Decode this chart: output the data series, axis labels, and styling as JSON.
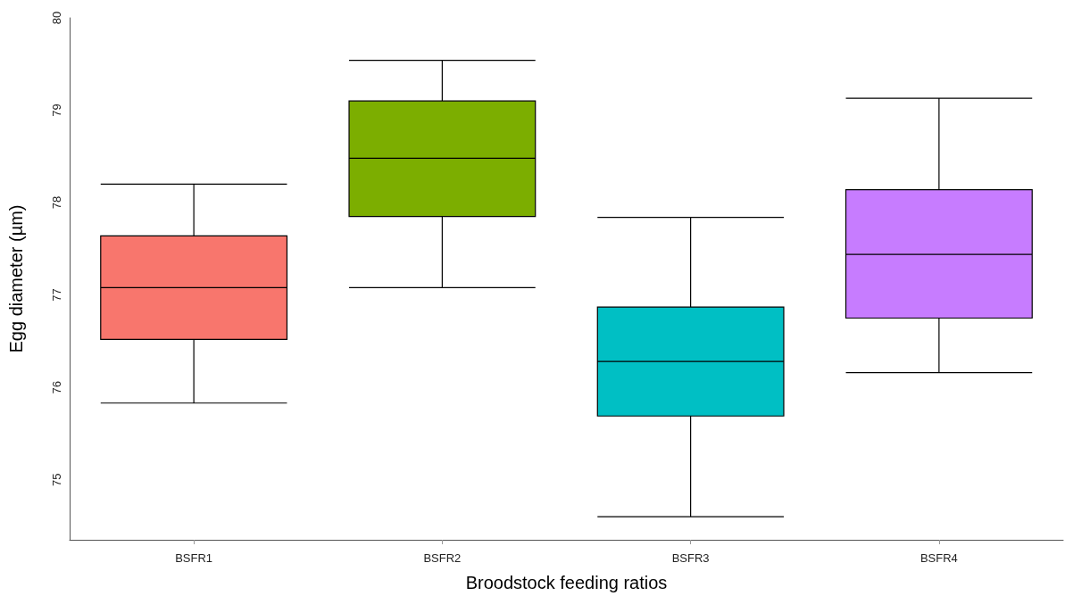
{
  "chart_data": {
    "type": "box",
    "xlabel": "Broodstock feeding ratios",
    "ylabel": "Egg diameter (µm)",
    "categories": [
      "BSFR1",
      "BSFR2",
      "BSFR3",
      "BSFR4"
    ],
    "colors": [
      "#f8766d",
      "#7cae00",
      "#00bfc4",
      "#c77cff"
    ],
    "boxes": [
      {
        "low": 75.83,
        "q1": 76.52,
        "median": 77.08,
        "q3": 77.64,
        "high": 78.2
      },
      {
        "low": 77.08,
        "q1": 77.85,
        "median": 78.48,
        "q3": 79.1,
        "high": 79.54
      },
      {
        "low": 74.6,
        "q1": 75.69,
        "median": 76.28,
        "q3": 76.87,
        "high": 77.84
      },
      {
        "low": 76.16,
        "q1": 76.75,
        "median": 77.44,
        "q3": 78.14,
        "high": 79.13
      }
    ],
    "ylim": [
      74.35,
      80
    ],
    "yticks": [
      75,
      76,
      77,
      78,
      79,
      80
    ],
    "grid": false
  }
}
